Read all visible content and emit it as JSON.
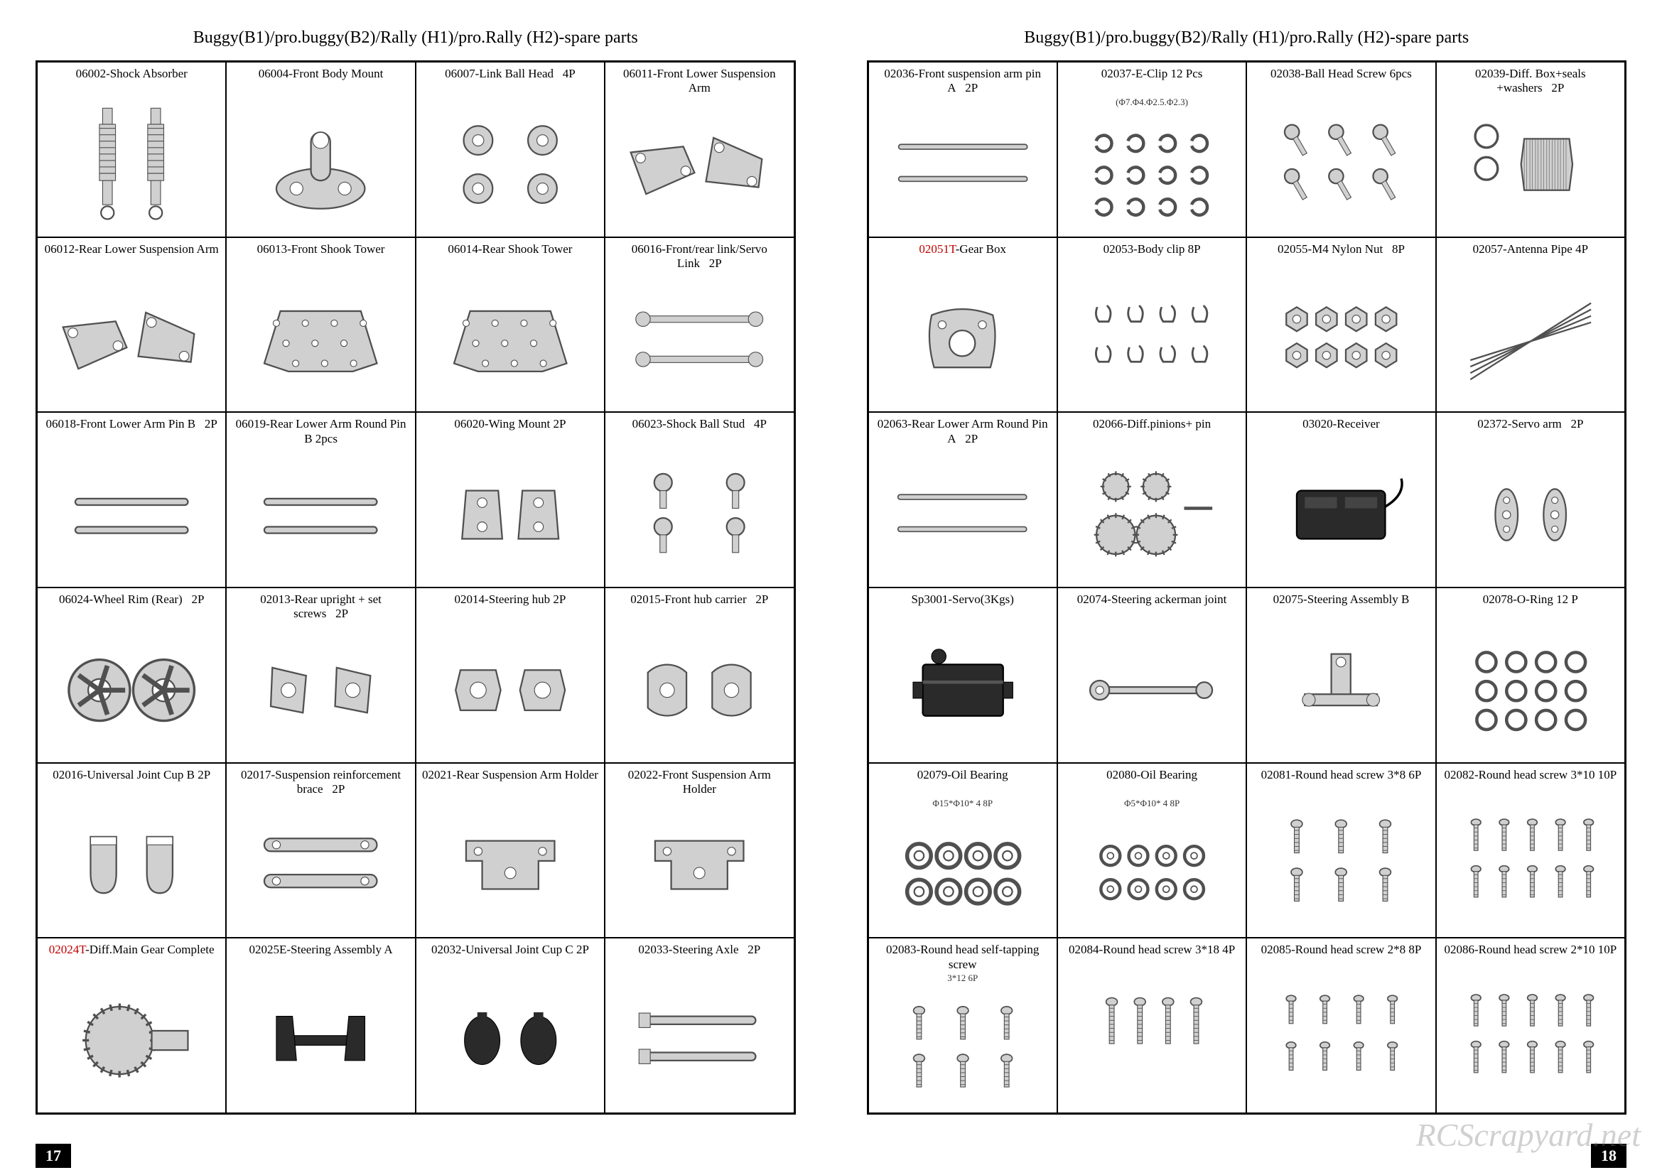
{
  "title": "Buggy(B1)/pro.buggy(B2)/Rally (H1)/pro.Rally (H2)-spare parts",
  "page_left_num": "17",
  "page_right_num": "18",
  "watermark": "RCScrapyard.net",
  "colors": {
    "text": "#000000",
    "red": "#c00000",
    "border": "#000000",
    "bg": "#ffffff",
    "part_fill": "#d0d0d0",
    "part_stroke": "#505050",
    "dark_fill": "#2a2a2a"
  },
  "left_cells": [
    {
      "code": "06002",
      "name": "Shock Absorber",
      "icon": "shock-absorber"
    },
    {
      "code": "06004",
      "name": "Front Body Mount",
      "icon": "body-mount"
    },
    {
      "code": "06007",
      "name": "Link Ball Head",
      "qty": "4P",
      "icon": "ball-heads"
    },
    {
      "code": "06011",
      "name": "Front Lower Suspension Arm",
      "icon": "susp-arm"
    },
    {
      "code": "06012",
      "name": "Rear Lower Suspension Arm",
      "icon": "susp-arm"
    },
    {
      "code": "06013",
      "name": "Front Shook Tower",
      "icon": "shock-tower"
    },
    {
      "code": "06014",
      "name": "Rear Shook Tower",
      "icon": "shock-tower"
    },
    {
      "code": "06016",
      "name": "Front/rear link/Servo Link",
      "qty": "2P",
      "icon": "links"
    },
    {
      "code": "06018",
      "name": "Front Lower Arm Pin  B",
      "qty": "2P",
      "icon": "pins"
    },
    {
      "code": "06019",
      "name": "Rear Lower Arm Round Pin B 2pcs",
      "icon": "pins"
    },
    {
      "code": "06020",
      "name": "Wing Mount 2P",
      "icon": "wing-mount"
    },
    {
      "code": "06023",
      "name": "Shock Ball Stud",
      "qty": "4P",
      "icon": "ball-studs"
    },
    {
      "code": "06024",
      "name": "Wheel Rim (Rear)",
      "qty": "2P",
      "icon": "wheels"
    },
    {
      "code": "02013",
      "name": "Rear upright + set screws",
      "qty": "2P",
      "icon": "uprights"
    },
    {
      "code": "02014",
      "name": "Steering hub  2P",
      "icon": "steering-hub"
    },
    {
      "code": "02015",
      "name": "Front hub carrier",
      "qty": "2P",
      "icon": "hub-carrier"
    },
    {
      "code": "02016",
      "name": "Universal Joint Cup  B 2P",
      "icon": "joint-cup"
    },
    {
      "code": "02017",
      "name": "Suspension reinforcement brace",
      "qty": "2P",
      "icon": "brace"
    },
    {
      "code": "02021",
      "name": "Rear Suspension Arm Holder",
      "icon": "arm-holder"
    },
    {
      "code": "02022",
      "name": "Front  Suspension Arm  Holder",
      "icon": "arm-holder"
    },
    {
      "code": "02024T",
      "name": "Diff.Main Gear Complete",
      "red": true,
      "icon": "diff-gear"
    },
    {
      "code": "02025E",
      "name": "Steering Assembly A",
      "icon": "steering-asm"
    },
    {
      "code": "02032",
      "name": "Universal Joint Cup  C 2P",
      "icon": "joint-cup-dark"
    },
    {
      "code": "02033",
      "name": "Steering Axle",
      "qty": "2P",
      "icon": "axles"
    }
  ],
  "right_cells": [
    {
      "code": "02036",
      "name": "Front suspension arm pin A",
      "qty": "2P",
      "icon": "long-pins"
    },
    {
      "code": "02037",
      "name": "E-Clip  12 Pcs",
      "sub": "(Φ7.Φ4.Φ2.5.Φ2.3)",
      "icon": "e-clips"
    },
    {
      "code": "02038",
      "name": "Ball Head Screw  6pcs",
      "icon": "ball-screws"
    },
    {
      "code": "02039",
      "name": "Diff. Box+seals +washers",
      "qty": "2P",
      "icon": "diff-box"
    },
    {
      "code": "02051T",
      "name": "Gear Box",
      "red": true,
      "icon": "gearbox"
    },
    {
      "code": "02053",
      "name": "Body clip   8P",
      "icon": "body-clips"
    },
    {
      "code": "02055",
      "name": "M4 Nylon Nut",
      "qty": "8P",
      "icon": "nuts"
    },
    {
      "code": "02057",
      "name": "Antenna Pipe 4P",
      "icon": "antenna"
    },
    {
      "code": "02063",
      "name": "Rear Lower Arm Round Pin A",
      "qty": "2P",
      "icon": "long-pins"
    },
    {
      "code": "02066",
      "name": "Diff.pinions+ pin",
      "icon": "pinions"
    },
    {
      "code": "03020",
      "name": "Receiver",
      "icon": "receiver"
    },
    {
      "code": "02372",
      "name": "Servo arm",
      "qty": "2P",
      "icon": "servo-arm"
    },
    {
      "code": "Sp3001",
      "name": "Servo(3Kgs)",
      "icon": "servo"
    },
    {
      "code": "02074",
      "name": "Steering ackerman joint",
      "icon": "ackerman"
    },
    {
      "code": "02075",
      "name": "Steering Assembly  B",
      "icon": "steering-b"
    },
    {
      "code": "02078",
      "name": "O-Ring  12 P",
      "icon": "o-rings"
    },
    {
      "code": "02079",
      "name": "Oil Bearing",
      "sub": "Φ15*Φ10* 4    8P",
      "icon": "bearings"
    },
    {
      "code": "02080",
      "name": "Oil Bearing",
      "sub": "Φ5*Φ10* 4    8P",
      "icon": "bearings-sm"
    },
    {
      "code": "02081",
      "name": "Round head screw 3*8  6P",
      "icon": "screws-6"
    },
    {
      "code": "02082",
      "name": "Round head screw 3*10  10P",
      "icon": "screws-10"
    },
    {
      "code": "02083",
      "name": "Round head self-tapping screw",
      "sub": "3*12  6P",
      "icon": "screws-6"
    },
    {
      "code": "02084",
      "name": "Round head screw 3*18   4P",
      "icon": "screws-4"
    },
    {
      "code": "02085",
      "name": "Round head screw 2*8   8P",
      "icon": "screws-8"
    },
    {
      "code": "02086",
      "name": "Round head screw 2*10  10P",
      "icon": "screws-10"
    }
  ]
}
